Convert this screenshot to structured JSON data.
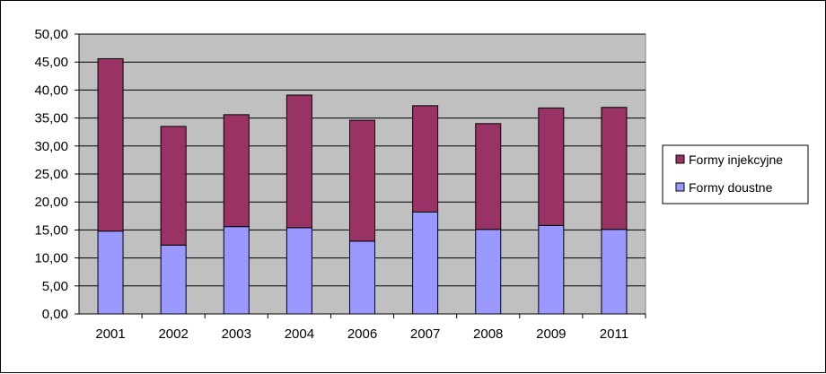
{
  "chart_data": {
    "type": "bar",
    "stacked": true,
    "categories": [
      "2001",
      "2002",
      "2003",
      "2004",
      "2006",
      "2007",
      "2008",
      "2009",
      "2011"
    ],
    "series": [
      {
        "name": "Formy doustne",
        "color": "#9999FF",
        "values": [
          14.8,
          12.3,
          15.6,
          15.4,
          13.0,
          18.2,
          15.1,
          15.8,
          15.1
        ]
      },
      {
        "name": "Formy injekcyjne",
        "color": "#993366",
        "values": [
          30.8,
          21.2,
          20.0,
          23.7,
          21.6,
          19.0,
          18.9,
          21.0,
          21.8
        ]
      }
    ],
    "ylim": [
      0,
      50
    ],
    "yticks": [
      "0,00",
      "5,00",
      "10,00",
      "15,00",
      "20,00",
      "25,00",
      "30,00",
      "35,00",
      "40,00",
      "45,00",
      "50,00"
    ],
    "grid": true,
    "plot_background": "#C0C0C0",
    "legend_position": "right",
    "legend_order": [
      "Formy injekcyjne",
      "Formy doustne"
    ]
  }
}
